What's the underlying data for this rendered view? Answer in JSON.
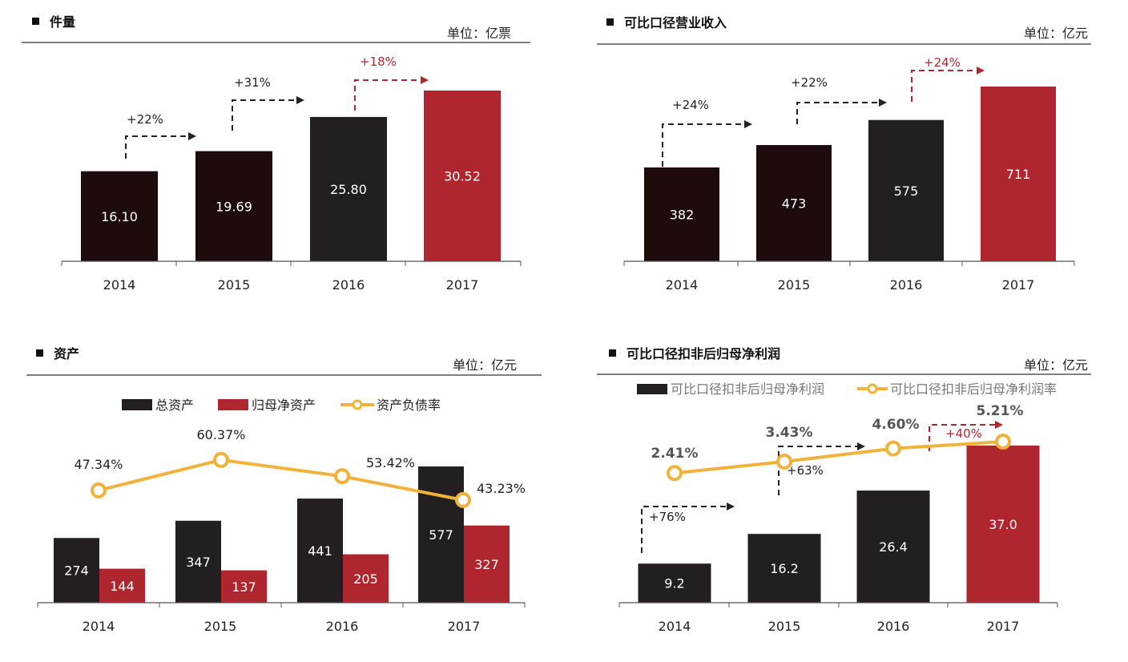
{
  "colors": {
    "dark": "#1e0c0c",
    "black": "#231f20",
    "red": "#b0262f",
    "orange": "#f0b23a",
    "line": "#555555"
  },
  "chart_data": [
    {
      "type": "bar",
      "title": "件量",
      "unit": "单位：亿票",
      "categories": [
        "2014",
        "2015",
        "2016",
        "2017"
      ],
      "values": [
        16.1,
        19.69,
        25.8,
        30.52
      ],
      "value_labels": [
        "16.10",
        "19.69",
        "25.80",
        "30.52"
      ],
      "bar_colors": [
        "#1e0c0c",
        "#1e0c0c",
        "#231f20",
        "#b0262f"
      ],
      "growth_labels": [
        "+22%",
        "+31%",
        "+18%"
      ],
      "growth_colors": [
        "#222222",
        "#222222",
        "#b0262f"
      ]
    },
    {
      "type": "bar",
      "title": "可比口径营业收入",
      "unit": "单位：亿元",
      "categories": [
        "2014",
        "2015",
        "2016",
        "2017"
      ],
      "values": [
        382,
        473,
        575,
        711
      ],
      "value_labels": [
        "382",
        "473",
        "575",
        "711"
      ],
      "bar_colors": [
        "#1e0c0c",
        "#1e0c0c",
        "#231f20",
        "#b0262f"
      ],
      "growth_labels": [
        "+24%",
        "+22%",
        "+24%"
      ],
      "growth_colors": [
        "#222222",
        "#222222",
        "#b0262f"
      ]
    },
    {
      "type": "bar+line",
      "title": "资产",
      "unit": "单位：亿元",
      "categories": [
        "2014",
        "2015",
        "2016",
        "2017"
      ],
      "series": [
        {
          "name": "总资产",
          "type": "bar",
          "color": "#231f20",
          "values": [
            274,
            347,
            441,
            577
          ]
        },
        {
          "name": "归母净资产",
          "type": "bar",
          "color": "#b0262f",
          "values": [
            144,
            137,
            205,
            327
          ]
        },
        {
          "name": "资产负债率",
          "type": "line",
          "color": "#f0b23a",
          "values": [
            47.34,
            60.37,
            53.42,
            43.23
          ],
          "labels": [
            "47.34%",
            "60.37%",
            "53.42%",
            "43.23%"
          ]
        }
      ],
      "legend": "top"
    },
    {
      "type": "bar+line",
      "title": "可比口径扣非后归母净利润",
      "unit": "单位：亿元",
      "categories": [
        "2014",
        "2015",
        "2016",
        "2017"
      ],
      "series": [
        {
          "name": "可比口径扣非后归母净利润",
          "type": "bar",
          "color": "#231f20",
          "values": [
            9.2,
            16.2,
            26.4,
            37.0
          ],
          "labels": [
            "9.2",
            "16.2",
            "26.4",
            "37.0"
          ],
          "bar_colors": [
            "#231f20",
            "#231f20",
            "#231f20",
            "#b0262f"
          ]
        },
        {
          "name": "可比口径扣非后归母净利润率",
          "type": "line",
          "color": "#f0b23a",
          "values": [
            2.41,
            3.43,
            4.6,
            5.21
          ],
          "labels": [
            "2.41%",
            "3.43%",
            "4.60%",
            "5.21%"
          ]
        }
      ],
      "growth_labels": [
        "+76%",
        "+63%",
        "+40%"
      ],
      "growth_colors": [
        "#222222",
        "#222222",
        "#b0262f"
      ],
      "legend": "top"
    }
  ]
}
